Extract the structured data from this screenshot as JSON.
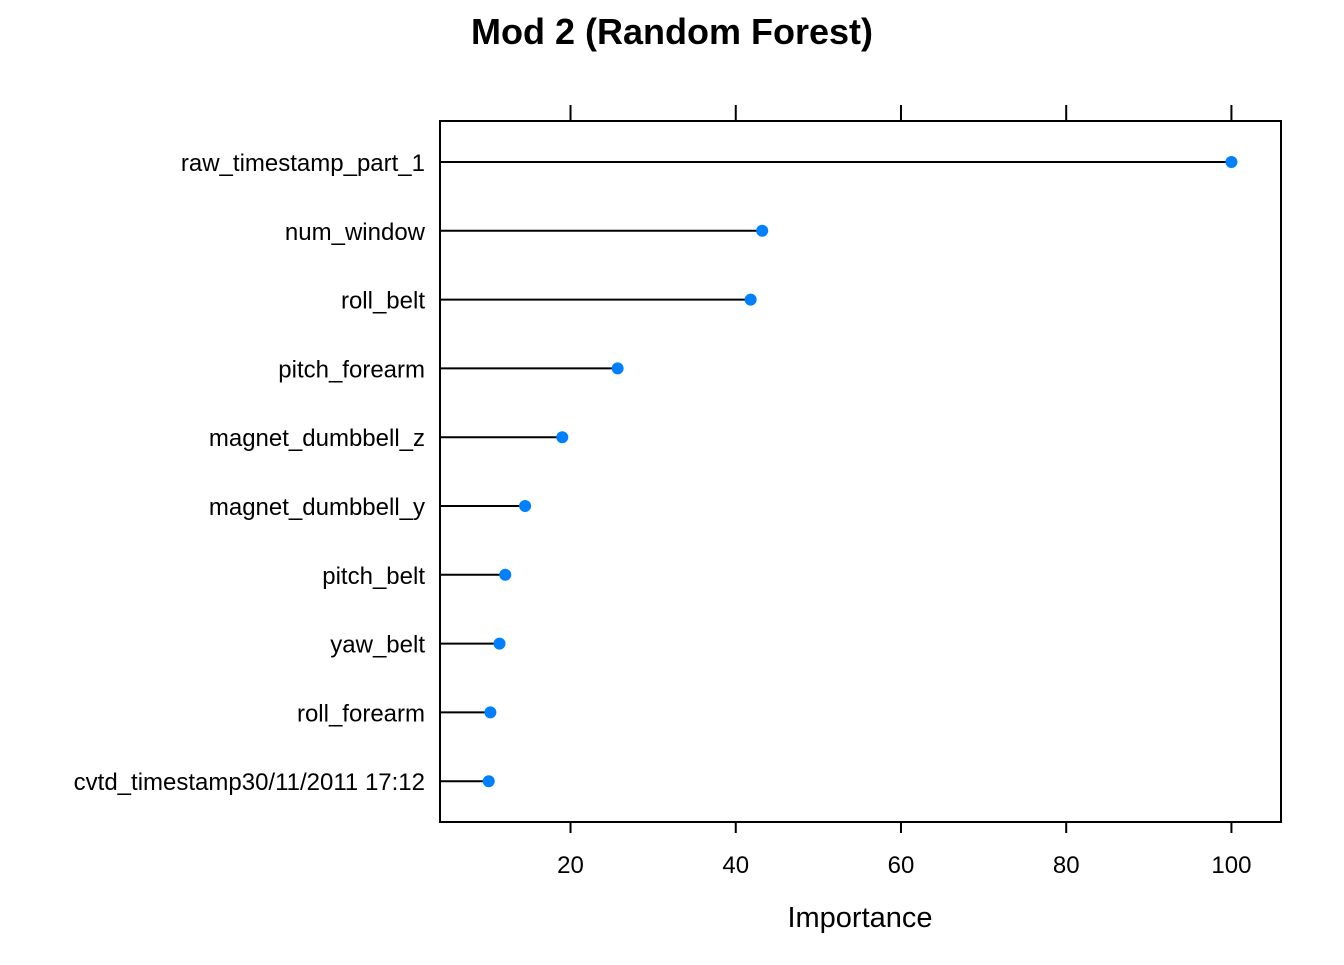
{
  "chart_data": {
    "type": "dotplot",
    "title": "Mod 2 (Random Forest)",
    "xlabel": "Importance",
    "ylabel": "",
    "categories": [
      "raw_timestamp_part_1",
      "num_window",
      "roll_belt",
      "pitch_forearm",
      "magnet_dumbbell_z",
      "magnet_dumbbell_y",
      "pitch_belt",
      "yaw_belt",
      "roll_forearm",
      "cvtd_timestamp30/11/2011 17:12"
    ],
    "values": [
      100,
      43.2,
      41.8,
      25.7,
      19.0,
      14.5,
      12.1,
      11.4,
      10.3,
      10.1
    ],
    "xlim": [
      4.2,
      106
    ],
    "xticks": [
      20,
      40,
      60,
      80,
      100
    ],
    "xtick_labels": [
      "20",
      "40",
      "60",
      "80",
      "100"
    ],
    "grid": false,
    "marker_color": "#0080ff",
    "line_color": "#000000"
  }
}
